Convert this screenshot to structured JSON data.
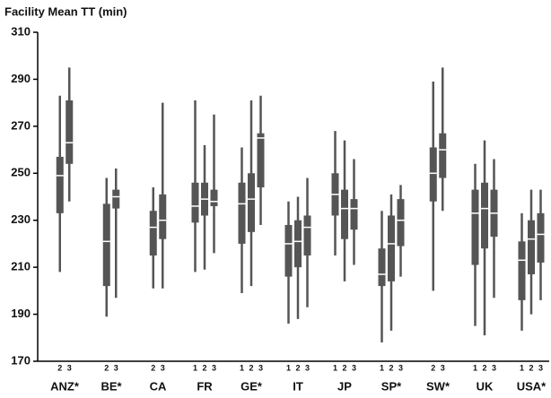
{
  "chart_data": {
    "type": "box",
    "title": "Facility Mean TT (min)",
    "color": "#555555",
    "ylim": [
      170,
      310
    ],
    "yticks": [
      170,
      190,
      210,
      230,
      250,
      270,
      290,
      310
    ],
    "groups": [
      {
        "name": "ANZ*",
        "boxes": [
          {
            "label": "2",
            "whisker_low": 208,
            "q1": 233,
            "median": 249,
            "q3": 257,
            "whisker_high": 283
          },
          {
            "label": "3",
            "whisker_low": 238,
            "q1": 254,
            "median": 263,
            "q3": 281,
            "whisker_high": 295
          }
        ]
      },
      {
        "name": "BE*",
        "boxes": [
          {
            "label": "2",
            "whisker_low": 189,
            "q1": 202,
            "median": 221,
            "q3": 237,
            "whisker_high": 248
          },
          {
            "label": "3",
            "whisker_low": 197,
            "q1": 235,
            "median": 240,
            "q3": 243,
            "whisker_high": 252
          }
        ]
      },
      {
        "name": "CA",
        "boxes": [
          {
            "label": "2",
            "whisker_low": 201,
            "q1": 215,
            "median": 227,
            "q3": 234,
            "whisker_high": 244
          },
          {
            "label": "3",
            "whisker_low": 201,
            "q1": 222,
            "median": 230,
            "q3": 241,
            "whisker_high": 280
          }
        ]
      },
      {
        "name": "FR",
        "boxes": [
          {
            "label": "1",
            "whisker_low": 208,
            "q1": 229,
            "median": 236,
            "q3": 246,
            "whisker_high": 281
          },
          {
            "label": "2",
            "whisker_low": 209,
            "q1": 232,
            "median": 239,
            "q3": 246,
            "whisker_high": 262
          },
          {
            "label": "3",
            "whisker_low": 216,
            "q1": 236,
            "median": 238,
            "q3": 243,
            "whisker_high": 275
          }
        ]
      },
      {
        "name": "GE*",
        "boxes": [
          {
            "label": "1",
            "whisker_low": 199,
            "q1": 220,
            "median": 237,
            "q3": 246,
            "whisker_high": 261
          },
          {
            "label": "2",
            "whisker_low": 202,
            "q1": 225,
            "median": 239,
            "q3": 250,
            "whisker_high": 281
          },
          {
            "label": "3",
            "whisker_low": 228,
            "q1": 244,
            "median": 265,
            "q3": 267,
            "whisker_high": 283
          }
        ]
      },
      {
        "name": "IT",
        "boxes": [
          {
            "label": "1",
            "whisker_low": 186,
            "q1": 206,
            "median": 220,
            "q3": 228,
            "whisker_high": 238
          },
          {
            "label": "2",
            "whisker_low": 188,
            "q1": 210,
            "median": 221,
            "q3": 230,
            "whisker_high": 240
          },
          {
            "label": "3",
            "whisker_low": 193,
            "q1": 215,
            "median": 227,
            "q3": 232,
            "whisker_high": 248
          }
        ]
      },
      {
        "name": "JP",
        "boxes": [
          {
            "label": "1",
            "whisker_low": 215,
            "q1": 232,
            "median": 241,
            "q3": 250,
            "whisker_high": 268
          },
          {
            "label": "2",
            "whisker_low": 204,
            "q1": 222,
            "median": 235,
            "q3": 243,
            "whisker_high": 264
          },
          {
            "label": "3",
            "whisker_low": 211,
            "q1": 226,
            "median": 235,
            "q3": 239,
            "whisker_high": 256
          }
        ]
      },
      {
        "name": "SP*",
        "boxes": [
          {
            "label": "1",
            "whisker_low": 178,
            "q1": 202,
            "median": 207,
            "q3": 218,
            "whisker_high": 234
          },
          {
            "label": "2",
            "whisker_low": 183,
            "q1": 204,
            "median": 220,
            "q3": 232,
            "whisker_high": 241
          },
          {
            "label": "3",
            "whisker_low": 206,
            "q1": 219,
            "median": 230,
            "q3": 239,
            "whisker_high": 245
          }
        ]
      },
      {
        "name": "SW*",
        "boxes": [
          {
            "label": "2",
            "whisker_low": 200,
            "q1": 238,
            "median": 250,
            "q3": 261,
            "whisker_high": 289
          },
          {
            "label": "3",
            "whisker_low": 234,
            "q1": 248,
            "median": 260,
            "q3": 267,
            "whisker_high": 295
          }
        ]
      },
      {
        "name": "UK",
        "boxes": [
          {
            "label": "1",
            "whisker_low": 185,
            "q1": 211,
            "median": 233,
            "q3": 243,
            "whisker_high": 254
          },
          {
            "label": "2",
            "whisker_low": 181,
            "q1": 218,
            "median": 235,
            "q3": 246,
            "whisker_high": 264
          },
          {
            "label": "3",
            "whisker_low": 197,
            "q1": 223,
            "median": 233,
            "q3": 243,
            "whisker_high": 256
          }
        ]
      },
      {
        "name": "USA*",
        "boxes": [
          {
            "label": "1",
            "whisker_low": 183,
            "q1": 196,
            "median": 213,
            "q3": 221,
            "whisker_high": 233
          },
          {
            "label": "2",
            "whisker_low": 190,
            "q1": 207,
            "median": 222,
            "q3": 230,
            "whisker_high": 243
          },
          {
            "label": "3",
            "whisker_low": 196,
            "q1": 212,
            "median": 224,
            "q3": 233,
            "whisker_high": 243
          }
        ]
      }
    ]
  }
}
